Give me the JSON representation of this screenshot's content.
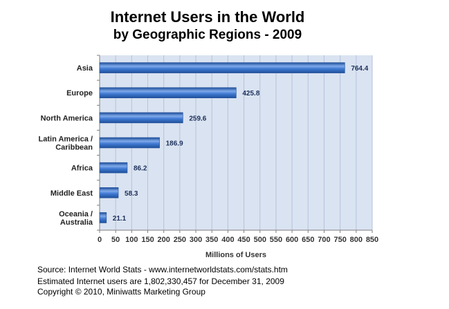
{
  "footer": {
    "source": "Source: Internet World Stats - www.internetworldstats.com/stats.htm",
    "estimate": "Estimated Internet users are 1,802,330,457 for December 31, 2009",
    "copyright": "Copyright © 2010, Miniwatts Marketing Group"
  },
  "colors": {
    "plot_background": "#dae3f1",
    "grid": "#b3c3dc",
    "bar_dark": "#1f4f9a",
    "bar_mid": "#3f79d2",
    "bar_light": "#7fa9ea",
    "label_text": "#1c2f5a"
  },
  "chart_data": {
    "type": "bar",
    "orientation": "horizontal",
    "title": "Internet Users in the World",
    "subtitle": "by Geographic Regions - 2009",
    "xlabel": "Millions of Users",
    "ylabel": "",
    "xlim": [
      0,
      850
    ],
    "xticks": [
      0,
      50,
      100,
      150,
      200,
      250,
      300,
      350,
      400,
      450,
      500,
      550,
      600,
      650,
      700,
      750,
      800,
      850
    ],
    "grid": true,
    "legend": "none",
    "categories": [
      [
        "Asia"
      ],
      [
        "Europe"
      ],
      [
        "North America"
      ],
      [
        "Latin America /",
        "Caribbean"
      ],
      [
        "Africa"
      ],
      [
        "Middle East"
      ],
      [
        "Oceania  /",
        "Australia"
      ]
    ],
    "values": [
      764.4,
      425.8,
      259.6,
      186.9,
      86.2,
      58.3,
      21.1
    ],
    "value_labels": [
      "764.4",
      "425.8",
      "259.6",
      "186.9",
      "86.2",
      "58.3",
      "21.1"
    ]
  }
}
